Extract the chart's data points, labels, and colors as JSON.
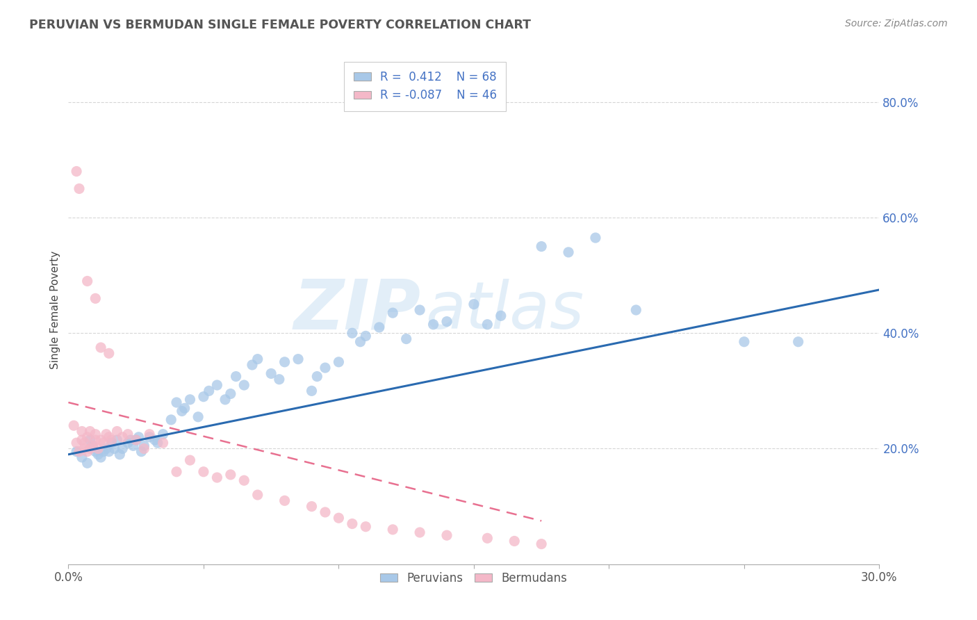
{
  "title": "PERUVIAN VS BERMUDAN SINGLE FEMALE POVERTY CORRELATION CHART",
  "source_text": "Source: ZipAtlas.com",
  "ylabel": "Single Female Poverty",
  "xlim": [
    0.0,
    0.3
  ],
  "ylim": [
    0.0,
    0.88
  ],
  "x_ticks": [
    0.0,
    0.05,
    0.1,
    0.15,
    0.2,
    0.25,
    0.3
  ],
  "y_ticks_right": [
    0.2,
    0.4,
    0.6,
    0.8
  ],
  "peruvian_color": "#a8c8e8",
  "bermudan_color": "#f4b8c8",
  "peruvian_line_color": "#2a6ab0",
  "bermudan_line_color": "#e87090",
  "r_peruvian": 0.412,
  "n_peruvian": 68,
  "r_bermudan": -0.087,
  "n_bermudan": 46,
  "watermark_zip": "ZIP",
  "watermark_atlas": "atlas",
  "background_color": "#ffffff",
  "grid_color": "#cccccc",
  "title_color": "#555555",
  "label_color": "#4472c4",
  "tick_label_color": "#555555",
  "legend_text_color": "#4472c4",
  "peruvian_x": [
    0.003,
    0.005,
    0.007,
    0.008,
    0.009,
    0.01,
    0.011,
    0.012,
    0.013,
    0.014,
    0.015,
    0.016,
    0.017,
    0.018,
    0.019,
    0.02,
    0.022,
    0.023,
    0.024,
    0.025,
    0.026,
    0.027,
    0.028,
    0.03,
    0.032,
    0.033,
    0.035,
    0.038,
    0.04,
    0.042,
    0.043,
    0.045,
    0.048,
    0.05,
    0.052,
    0.055,
    0.058,
    0.06,
    0.062,
    0.065,
    0.068,
    0.07,
    0.075,
    0.078,
    0.08,
    0.085,
    0.09,
    0.092,
    0.095,
    0.1,
    0.105,
    0.108,
    0.11,
    0.115,
    0.12,
    0.125,
    0.13,
    0.135,
    0.14,
    0.15,
    0.155,
    0.16,
    0.175,
    0.185,
    0.195,
    0.21,
    0.25,
    0.27
  ],
  "peruvian_y": [
    0.195,
    0.185,
    0.175,
    0.215,
    0.205,
    0.195,
    0.19,
    0.185,
    0.195,
    0.2,
    0.195,
    0.21,
    0.2,
    0.215,
    0.19,
    0.2,
    0.21,
    0.215,
    0.205,
    0.215,
    0.22,
    0.195,
    0.205,
    0.22,
    0.215,
    0.21,
    0.225,
    0.25,
    0.28,
    0.265,
    0.27,
    0.285,
    0.255,
    0.29,
    0.3,
    0.31,
    0.285,
    0.295,
    0.325,
    0.31,
    0.345,
    0.355,
    0.33,
    0.32,
    0.35,
    0.355,
    0.3,
    0.325,
    0.34,
    0.35,
    0.4,
    0.385,
    0.395,
    0.41,
    0.435,
    0.39,
    0.44,
    0.415,
    0.42,
    0.45,
    0.415,
    0.43,
    0.55,
    0.54,
    0.565,
    0.44,
    0.385,
    0.385
  ],
  "bermudan_x": [
    0.002,
    0.003,
    0.004,
    0.005,
    0.005,
    0.006,
    0.006,
    0.007,
    0.007,
    0.008,
    0.008,
    0.009,
    0.01,
    0.01,
    0.011,
    0.012,
    0.013,
    0.014,
    0.015,
    0.016,
    0.018,
    0.02,
    0.022,
    0.025,
    0.028,
    0.03,
    0.035,
    0.04,
    0.045,
    0.05,
    0.055,
    0.06,
    0.065,
    0.07,
    0.08,
    0.09,
    0.095,
    0.1,
    0.105,
    0.11,
    0.12,
    0.13,
    0.14,
    0.155,
    0.165,
    0.175
  ],
  "bermudan_y": [
    0.24,
    0.21,
    0.195,
    0.215,
    0.23,
    0.2,
    0.21,
    0.22,
    0.195,
    0.23,
    0.2,
    0.205,
    0.215,
    0.225,
    0.2,
    0.215,
    0.21,
    0.225,
    0.22,
    0.215,
    0.23,
    0.22,
    0.225,
    0.215,
    0.2,
    0.225,
    0.21,
    0.16,
    0.18,
    0.16,
    0.15,
    0.155,
    0.145,
    0.12,
    0.11,
    0.1,
    0.09,
    0.08,
    0.07,
    0.065,
    0.06,
    0.055,
    0.05,
    0.045,
    0.04,
    0.035
  ],
  "bermudan_outlier_x": [
    0.003,
    0.004,
    0.007,
    0.01,
    0.012,
    0.015
  ],
  "bermudan_outlier_y": [
    0.68,
    0.65,
    0.49,
    0.46,
    0.375,
    0.365
  ]
}
